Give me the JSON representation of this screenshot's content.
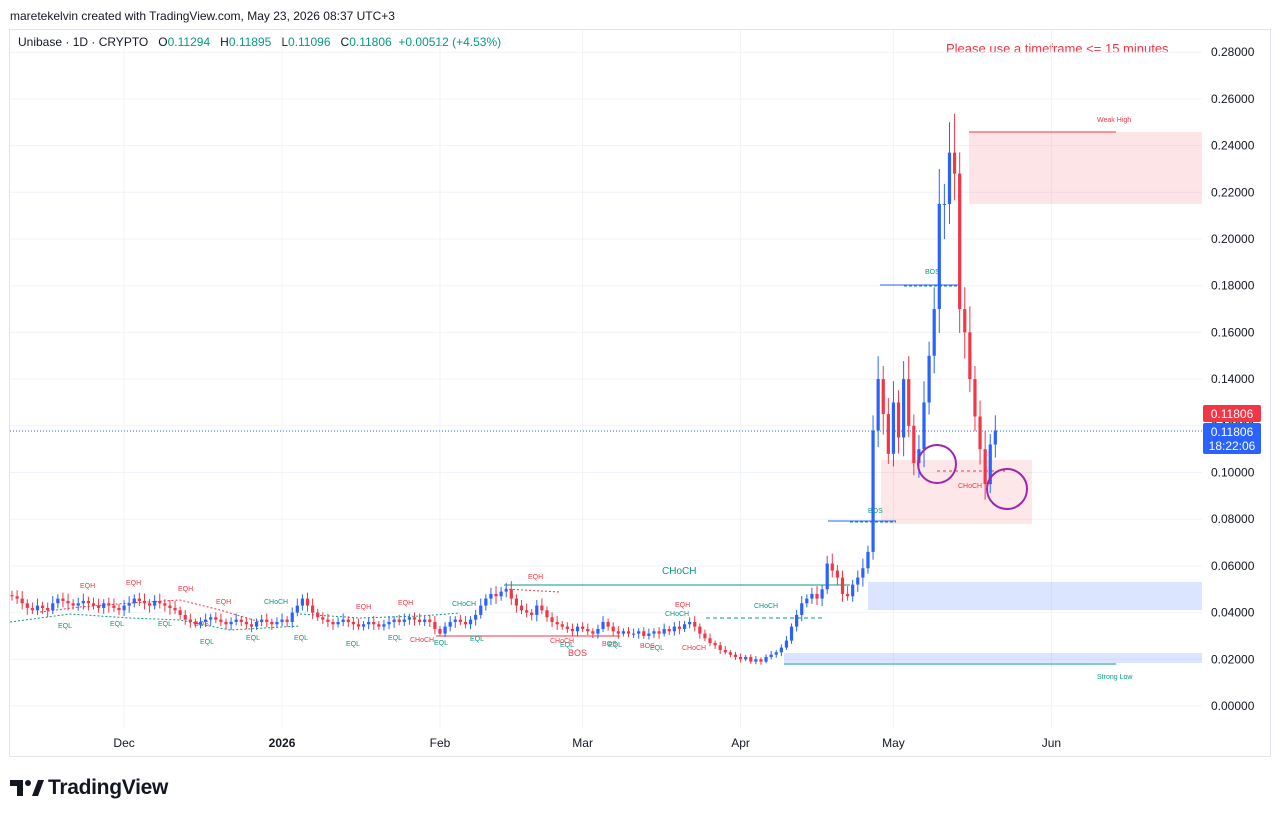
{
  "header": {
    "credit": "maretekelvin created with TradingView.com, May 23, 2026 08:37 UTC+3"
  },
  "legend": {
    "symbol": "Unibase · 1D · CRYPTO",
    "o_label": "O",
    "o": "0.11294",
    "h_label": "H",
    "h": "0.11895",
    "l_label": "L",
    "l": "0.11096",
    "c_label": "C",
    "c": "0.11806",
    "change": "+0.00512 (+4.53%)"
  },
  "warning": "Please use a timeframe <= 15 minutes",
  "price_tags": {
    "price": "0.11806",
    "alert": "0.11806",
    "countdown": "18:22:06"
  },
  "branding": {
    "name": "TradingView"
  },
  "colors": {
    "up": "#2962ff",
    "down": "#f23645",
    "bull_text": "#089981",
    "bear_text": "#f23645"
  },
  "chart_data": {
    "type": "candlestick",
    "y_range": [
      0,
      0.28
    ],
    "y_ticks": [
      "0.28000",
      "0.26000",
      "0.24000",
      "0.22000",
      "0.20000",
      "0.18000",
      "0.16000",
      "0.14000",
      "0.12000",
      "0.10000",
      "0.08000",
      "0.06000",
      "0.04000",
      "0.02000",
      "0.00000"
    ],
    "y_tick_values": [
      0.28,
      0.26,
      0.24,
      0.22,
      0.2,
      0.18,
      0.16,
      0.14,
      0.12,
      0.1,
      0.08,
      0.06,
      0.04,
      0.02,
      0.0
    ],
    "x_labels": [
      {
        "label": "Dec",
        "day": 22
      },
      {
        "label": "2026",
        "day": 53
      },
      {
        "label": "Feb",
        "day": 84
      },
      {
        "label": "Mar",
        "day": 112
      },
      {
        "label": "Apr",
        "day": 143
      },
      {
        "label": "May",
        "day": 173
      },
      {
        "label": "Jun",
        "day": 204
      }
    ],
    "closes": [
      0.047,
      0.046,
      0.044,
      0.042,
      0.041,
      0.043,
      0.042,
      0.041,
      0.044,
      0.046,
      0.045,
      0.044,
      0.043,
      0.044,
      0.045,
      0.044,
      0.043,
      0.042,
      0.044,
      0.043,
      0.042,
      0.041,
      0.043,
      0.044,
      0.046,
      0.045,
      0.044,
      0.043,
      0.045,
      0.044,
      0.043,
      0.042,
      0.041,
      0.039,
      0.037,
      0.036,
      0.035,
      0.036,
      0.037,
      0.038,
      0.037,
      0.036,
      0.035,
      0.036,
      0.037,
      0.036,
      0.035,
      0.034,
      0.036,
      0.037,
      0.036,
      0.035,
      0.036,
      0.037,
      0.036,
      0.04,
      0.043,
      0.046,
      0.043,
      0.04,
      0.038,
      0.037,
      0.036,
      0.035,
      0.036,
      0.037,
      0.036,
      0.035,
      0.034,
      0.035,
      0.036,
      0.035,
      0.034,
      0.035,
      0.036,
      0.037,
      0.036,
      0.037,
      0.038,
      0.037,
      0.036,
      0.037,
      0.036,
      0.033,
      0.031,
      0.034,
      0.036,
      0.037,
      0.036,
      0.035,
      0.037,
      0.039,
      0.043,
      0.046,
      0.048,
      0.047,
      0.049,
      0.05,
      0.046,
      0.043,
      0.041,
      0.04,
      0.039,
      0.043,
      0.041,
      0.038,
      0.036,
      0.035,
      0.034,
      0.033,
      0.032,
      0.034,
      0.033,
      0.032,
      0.031,
      0.033,
      0.036,
      0.034,
      0.032,
      0.031,
      0.032,
      0.031,
      0.031,
      0.032,
      0.03,
      0.031,
      0.032,
      0.031,
      0.033,
      0.032,
      0.034,
      0.033,
      0.035,
      0.036,
      0.034,
      0.031,
      0.029,
      0.027,
      0.026,
      0.024,
      0.023,
      0.022,
      0.021,
      0.02,
      0.021,
      0.019,
      0.02,
      0.019,
      0.021,
      0.022,
      0.023,
      0.025,
      0.028,
      0.034,
      0.039,
      0.044,
      0.046,
      0.048,
      0.046,
      0.05,
      0.061,
      0.058,
      0.055,
      0.048,
      0.047,
      0.052,
      0.055,
      0.059,
      0.066,
      0.118,
      0.14,
      0.125,
      0.108,
      0.13,
      0.115,
      0.14,
      0.12,
      0.104,
      0.11,
      0.13,
      0.15,
      0.17,
      0.215,
      0.215,
      0.237,
      0.228,
      0.17,
      0.16,
      0.14,
      0.124,
      0.11,
      0.095,
      0.112,
      0.118
    ]
  },
  "annotations": {
    "choch_main": "CHoCH",
    "choch_mid": "CHoCH",
    "choch_small": "CHoCH",
    "bos_red": "BOS",
    "bos_top": "BOS",
    "bos_mid": "BOS",
    "weak_high": "Weak High",
    "strong_low": "Strong Low",
    "eqh": "EQH",
    "eql": "EQL",
    "bos_small": "BOS"
  }
}
